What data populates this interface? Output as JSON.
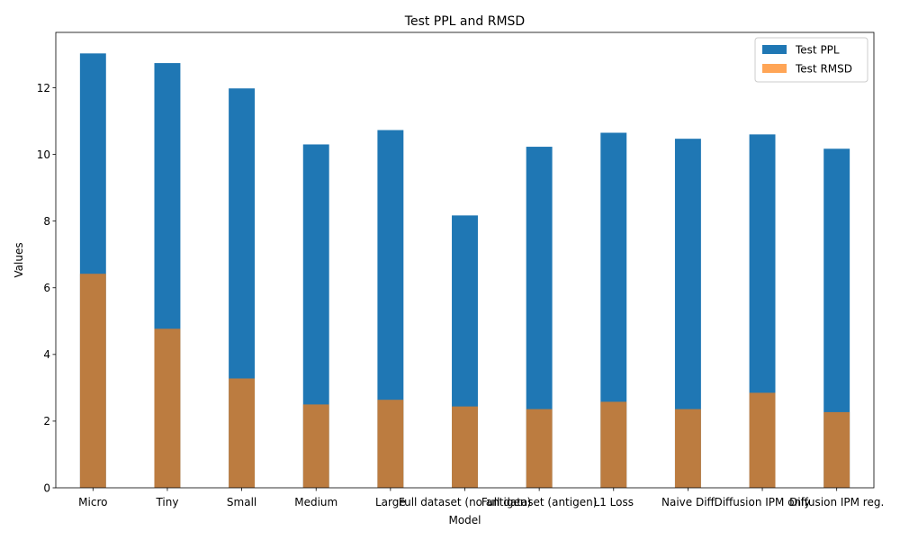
{
  "chart_data": {
    "type": "bar",
    "title": "Test PPL and RMSD",
    "xlabel": "Model",
    "ylabel": "Values",
    "ylim": [
      0,
      13.66
    ],
    "yticks": [
      0,
      2,
      4,
      6,
      8,
      10,
      12
    ],
    "categories": [
      "Micro",
      "Tiny",
      "Small",
      "Medium",
      "Large",
      "Full dataset (no antigen)",
      "Full dataset (antigen)",
      "L1 Loss",
      "Naive Diff",
      "Diffusion IPM only",
      "Diffusion IPM reg."
    ],
    "series": [
      {
        "name": "Test PPL",
        "color": "#1f77b4",
        "alpha": 1.0,
        "values": [
          13.03,
          12.74,
          11.98,
          10.3,
          10.73,
          8.17,
          10.23,
          10.65,
          10.47,
          10.6,
          10.17
        ]
      },
      {
        "name": "Test RMSD",
        "color": "#ff7f0e",
        "alpha": 0.7,
        "values": [
          6.42,
          4.77,
          3.28,
          2.5,
          2.64,
          2.44,
          2.36,
          2.58,
          2.36,
          2.85,
          2.27
        ]
      }
    ],
    "legend": "top-right",
    "grid": false
  }
}
